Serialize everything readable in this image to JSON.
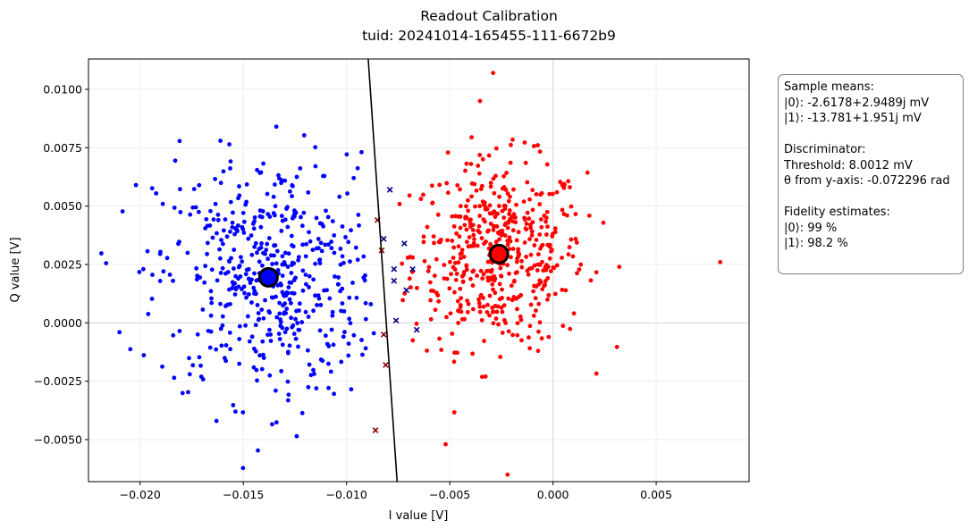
{
  "chart_data": {
    "type": "scatter",
    "title": "Readout Calibration",
    "subtitle": "tuid: 20241014-165455-111-6672b9",
    "xlabel": "I value [V]",
    "ylabel": "Q value [V]",
    "xlim": [
      -0.0225,
      0.0095
    ],
    "ylim": [
      -0.0068,
      0.0113
    ],
    "x_ticks": [
      -0.02,
      -0.015,
      -0.01,
      -0.005,
      0.0,
      0.005
    ],
    "x_tick_labels": [
      "−0.020",
      "−0.015",
      "−0.010",
      "−0.005",
      "0.000",
      "0.005"
    ],
    "y_ticks": [
      -0.005,
      -0.0025,
      0.0,
      0.0025,
      0.005,
      0.0075,
      0.01
    ],
    "y_tick_labels": [
      "−0.0050",
      "−0.0025",
      "0.0000",
      "0.0025",
      "0.0050",
      "0.0075",
      "0.0100"
    ],
    "grid": true,
    "series": [
      {
        "state": "|0⟩",
        "color": "#ff0000",
        "mean": [
          -0.0026178,
          0.0029489
        ],
        "spread": [
          0.0021,
          0.002
        ],
        "count": 500,
        "outliers": [
          [
            0.0081,
            0.0026
          ],
          [
            -0.0029,
            0.0107
          ],
          [
            -0.0022,
            -0.0065
          ],
          [
            -0.0052,
            -0.0052
          ]
        ]
      },
      {
        "state": "|1⟩",
        "color": "#0000ff",
        "mean": [
          -0.013781,
          0.001951
        ],
        "spread": [
          0.0027,
          0.0026
        ],
        "count": 500,
        "outliers": [
          [
            -0.021,
            -0.0004
          ],
          [
            -0.0202,
            0.0059
          ],
          [
            -0.0163,
            -0.0042
          ],
          [
            -0.0134,
            0.0084
          ]
        ]
      }
    ],
    "misclassified_0": [
      [
        -0.0085,
        0.0044
      ],
      [
        -0.0083,
        0.0031
      ],
      [
        -0.0082,
        -0.0005
      ],
      [
        -0.0081,
        -0.0018
      ],
      [
        -0.0086,
        -0.0046
      ]
    ],
    "misclassified_1": [
      [
        -0.0082,
        0.0036
      ],
      [
        -0.0079,
        0.0057
      ],
      [
        -0.0077,
        0.0023
      ],
      [
        -0.0077,
        0.0018
      ],
      [
        -0.0072,
        0.0034
      ],
      [
        -0.0071,
        0.0014
      ],
      [
        -0.0076,
        0.0001
      ],
      [
        -0.0066,
        -0.0003
      ],
      [
        -0.0068,
        0.0023
      ]
    ],
    "discriminator": {
      "threshold_mV": 8.0012,
      "theta_from_y_axis_rad": -0.072296,
      "line": [
        [
          -0.00895,
          0.0113
        ],
        [
          -0.00755,
          -0.0068
        ]
      ]
    }
  },
  "info": {
    "sample_means_heading": "Sample means:",
    "mean0": "|0⟩: -2.6178+2.9489j mV",
    "mean1": "|1⟩: -13.781+1.951j mV",
    "discriminator_heading": "Discriminator:",
    "threshold": "Threshold: 8.0012 mV",
    "theta": "θ from y-axis: -0.072296 rad",
    "fidelity_heading": "Fidelity estimates:",
    "fid0": "|0⟩: 99 %",
    "fid1": "|1⟩: 98.2 %"
  },
  "colors": {
    "state0": "#ff0000",
    "state1": "#0000ff",
    "misclassified0": "#8b0000",
    "misclassified1": "#00008b",
    "discriminator": "#000000"
  }
}
